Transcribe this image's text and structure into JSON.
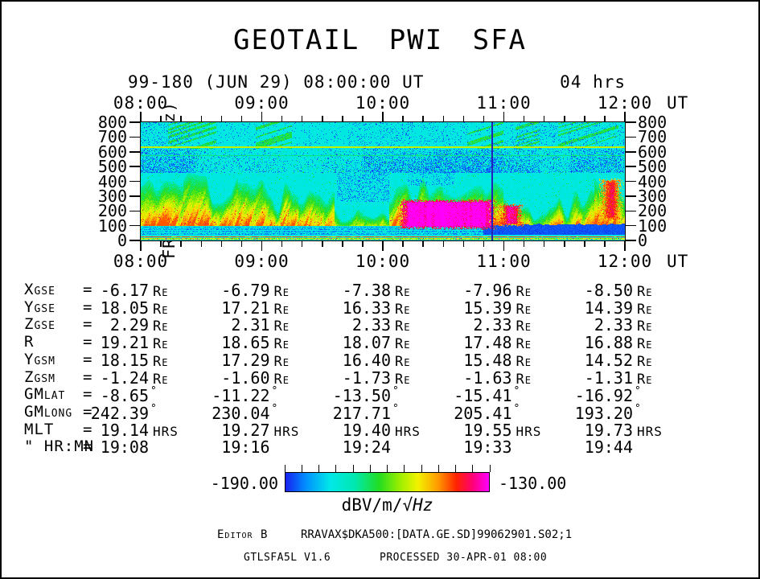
{
  "title": "GEOTAIL PWI SFA",
  "header": {
    "date_line": "99-180 (JUN 29) 08:00:00 UT",
    "duration": "04 hrs"
  },
  "time_axis": {
    "labels": [
      "08:00",
      "09:00",
      "10:00",
      "11:00",
      "12:00"
    ],
    "suffix": "UT",
    "minor_ticks_per_hour": 6
  },
  "freq_axis": {
    "title": "FREQUENCY (kHz)",
    "tick_labels": [
      "800",
      "700",
      "600",
      "500",
      "400",
      "300",
      "200",
      "100",
      "0"
    ]
  },
  "chart_data": {
    "type": "heatmap",
    "title": "GEOTAIL PWI SFA",
    "x": {
      "label": "UT",
      "start": "08:00",
      "end": "12:00",
      "span_hours": 4,
      "major_tick_hours": 1,
      "minor_tick_minutes": 10
    },
    "y": {
      "label": "FREQUENCY (kHz)",
      "min": 0,
      "max": 800,
      "tick_step": 100
    },
    "z": {
      "label": "dBV/m/√Hz",
      "min": -190.0,
      "max": -130.0
    },
    "palette": [
      {
        "pos": 0.0,
        "color": "#1822F0"
      },
      {
        "pos": 0.1,
        "color": "#0090FF"
      },
      {
        "pos": 0.22,
        "color": "#00E8E8"
      },
      {
        "pos": 0.34,
        "color": "#00E8B0"
      },
      {
        "pos": 0.46,
        "color": "#22DD22"
      },
      {
        "pos": 0.56,
        "color": "#99EE00"
      },
      {
        "pos": 0.65,
        "color": "#F2F200"
      },
      {
        "pos": 0.75,
        "color": "#FF9900"
      },
      {
        "pos": 0.84,
        "color": "#FF2200"
      },
      {
        "pos": 0.92,
        "color": "#FF0077"
      },
      {
        "pos": 1.0,
        "color": "#FF00FF"
      }
    ],
    "features": {
      "background_value": 0.235,
      "hlines": [
        {
          "f": 635,
          "value": 0.6,
          "px": 2
        },
        {
          "f": 578,
          "value": 0.38,
          "px": 1
        }
      ],
      "vline": {
        "t": 2.905,
        "color": "#2222B8",
        "px": 2
      },
      "upper_speckle": {
        "fmin": 622,
        "base_density": 0.05,
        "patches": [
          [
            0,
            0.4,
            0.13
          ],
          [
            1.7,
            2.25,
            0.12
          ],
          [
            2.3,
            2.6,
            0.1
          ],
          [
            3.05,
            3.45,
            0.12
          ],
          [
            3.5,
            4,
            0.1
          ]
        ]
      },
      "green_streaks": [
        [
          0.22,
          0.62,
          0.8
        ],
        [
          0.95,
          1.25,
          0.4
        ],
        [
          2.7,
          3.0,
          0.6
        ],
        [
          3.1,
          3.3,
          0.45
        ],
        [
          3.45,
          3.95,
          0.35
        ]
      ],
      "mid_speckle": {
        "fmin": 460,
        "segments": [
          [
            0,
            0.45,
            0.42
          ],
          [
            0.45,
            1.15,
            0.12
          ],
          [
            1.15,
            1.5,
            0.07
          ],
          [
            1.5,
            1.85,
            0.14
          ],
          [
            1.85,
            2.35,
            0.38
          ],
          [
            2.35,
            3.0,
            0.48
          ],
          [
            3.0,
            3.3,
            0.33
          ],
          [
            3.3,
            3.55,
            0.15
          ],
          [
            3.55,
            4,
            0.4
          ]
        ]
      },
      "mid_patches": [
        [
          1.62,
          2.05,
          260,
          460,
          0.25
        ],
        [
          2.2,
          2.6,
          370,
          460,
          0.18
        ]
      ],
      "flames": {
        "fmax": 470,
        "segments": [
          [
            0,
            0.35,
            0.85
          ],
          [
            0.35,
            0.8,
            0.95
          ],
          [
            0.8,
            1.3,
            0.9
          ],
          [
            1.3,
            1.6,
            0.8
          ],
          [
            1.6,
            2.05,
            0.5
          ],
          [
            2.05,
            2.5,
            0.95
          ],
          [
            2.5,
            3.0,
            0.85
          ],
          [
            3.0,
            3.45,
            0.7
          ],
          [
            3.45,
            3.75,
            0.75
          ],
          [
            3.75,
            4.01,
            0.95
          ]
        ]
      },
      "blobs": [
        {
          "t0": 2.12,
          "t1": 2.95,
          "f0": 70,
          "f1": 280,
          "v": 0.97
        },
        {
          "t0": 2.95,
          "t1": 3.18,
          "f0": 90,
          "f1": 250,
          "v": 0.9
        },
        {
          "t0": 3.78,
          "t1": 4.0,
          "f0": 130,
          "f1": 420,
          "v": 0.82
        }
      ],
      "low_band": {
        "fmin": 22,
        "fmax": 95,
        "stripes": [
          40,
          56,
          72,
          88
        ],
        "solid": {
          "t0": 2.83,
          "t1": 4.0,
          "f0": 33,
          "f1": 112
        }
      },
      "baseline": {
        "f": 8,
        "value": 0.52
      }
    }
  },
  "ephemeris": {
    "equals": "=",
    "rows": [
      {
        "label": "Xgse",
        "unit": "Re",
        "values": [
          "-6.17",
          "-6.79",
          "-7.38",
          "-7.96",
          "-8.50"
        ]
      },
      {
        "label": "Ygse",
        "unit": "Re",
        "values": [
          "18.05",
          "17.21",
          "16.33",
          "15.39",
          "14.39"
        ]
      },
      {
        "label": "Zgse",
        "unit": "Re",
        "values": [
          "2.29",
          "2.31",
          "2.33",
          "2.33",
          "2.33"
        ]
      },
      {
        "label": "R",
        "unit": "Re",
        "values": [
          "19.21",
          "18.65",
          "18.07",
          "17.48",
          "16.88"
        ]
      },
      {
        "label": "Ygsm",
        "unit": "Re",
        "values": [
          "18.15",
          "17.29",
          "16.40",
          "15.48",
          "14.52"
        ]
      },
      {
        "label": "Zgsm",
        "unit": "Re",
        "values": [
          "-1.24",
          "-1.60",
          "-1.73",
          "-1.63",
          "-1.31"
        ]
      },
      {
        "label": "GMlat",
        "unit": "°",
        "values": [
          "-8.65",
          "-11.22",
          "-13.50",
          "-15.41",
          "-16.92"
        ]
      },
      {
        "label": "GMlong",
        "unit": "°",
        "values": [
          "242.39",
          "230.04",
          "217.71",
          "205.41",
          "193.20"
        ]
      },
      {
        "label": "MLT",
        "unit": "HRS",
        "values": [
          "19.14",
          "19.27",
          "19.40",
          "19.55",
          "19.73"
        ]
      },
      {
        "label": "\" HR:MN",
        "unit": "",
        "values": [
          "19:08",
          "19:16",
          "19:24",
          "19:33",
          "19:44"
        ]
      }
    ]
  },
  "colorbar": {
    "min_label": "-190.00",
    "max_label": "-130.00",
    "unit_prefix": "dBV/m/√",
    "unit_italic": "Hz"
  },
  "footer": {
    "editor": "Editor B",
    "file": "RRAVAX$DKA500:[DATA.GE.SD]99062901.S02;1",
    "program": "GTLSFA5L V1.6",
    "processed": "PROCESSED 30-APR-01  08:00"
  }
}
